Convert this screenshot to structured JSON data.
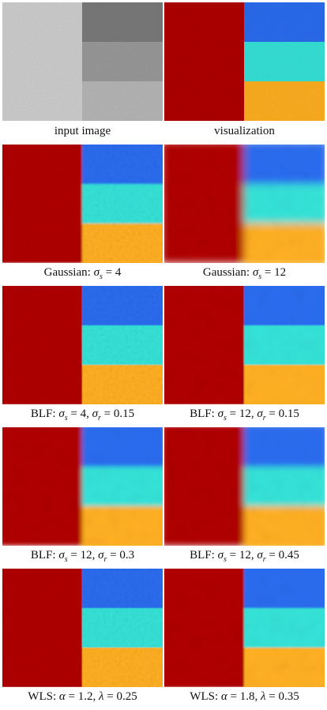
{
  "figure": {
    "panels": [
      {
        "id": "input",
        "caption": "input image",
        "kind": "gray",
        "blur": 0,
        "noise": "raw"
      },
      {
        "id": "visualization",
        "caption": "visualization",
        "kind": "color",
        "blur": 0,
        "noise": "raw"
      },
      {
        "id": "gaussian-4",
        "caption": "Gaussian: σs = 4",
        "kind": "color",
        "blur": 1.2,
        "noise": "soft"
      },
      {
        "id": "gaussian-12",
        "caption": "Gaussian: σs = 12",
        "kind": "color",
        "blur": 5,
        "noise": "smooth"
      },
      {
        "id": "blf-4-015",
        "caption": "BLF: σs = 4, σr = 0.15",
        "kind": "color",
        "blur": 0.6,
        "noise": "soft"
      },
      {
        "id": "blf-12-015",
        "caption": "BLF: σs = 12, σr = 0.15",
        "kind": "color",
        "blur": 0.8,
        "noise": "smooth"
      },
      {
        "id": "blf-12-03",
        "caption": "BLF: σs = 12, σr = 0.3",
        "kind": "color",
        "blur": 3,
        "noise": "smooth"
      },
      {
        "id": "blf-12-045",
        "caption": "BLF: σs = 12, σr = 0.45",
        "kind": "color",
        "blur": 4,
        "noise": "smooth"
      },
      {
        "id": "wls-12-025",
        "caption": "WLS: α = 1.2, λ = 0.25",
        "kind": "color",
        "blur": 0.6,
        "noise": "soft"
      },
      {
        "id": "wls-18-035",
        "caption": "WLS: α = 1.8, λ = 0.35",
        "kind": "color",
        "blur": 1.0,
        "noise": "smooth"
      }
    ],
    "colors": {
      "left_red": "#b00000",
      "right_top_blue": "#2a6cf0",
      "right_mid_cyan": "#35e3d8",
      "right_bottom_orange": "#ffb020",
      "gray_left": "#cfcfcf",
      "gray_top": "#7a7a7a",
      "gray_mid": "#9a9a9a",
      "gray_bottom": "#b7b7b7"
    }
  }
}
